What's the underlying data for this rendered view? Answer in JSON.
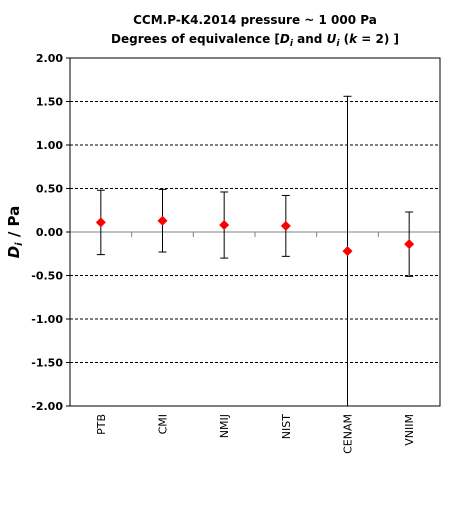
{
  "chart_data": {
    "type": "scatter",
    "title_line1": "CCM.P-K4.2014  pressure ~ 1 000 Pa",
    "title_line2": {
      "prefix": "Degrees of equivalence [",
      "d_symbol": "D",
      "d_subscript": "i",
      "and": " and ",
      "u_symbol": "U",
      "u_subscript": "i",
      "k_open": " (",
      "k_symbol": "k",
      "k_value": " = 2) ]"
    },
    "ylabel": {
      "symbol": "D",
      "subscript": "i",
      "unit": " / Pa"
    },
    "xlabel": "",
    "ylim": [
      -2.0,
      2.0
    ],
    "yticks": [
      "2.00",
      "1.50",
      "1.00",
      "0.50",
      "0.00",
      "-0.50",
      "-1.00",
      "-1.50",
      "-2.00"
    ],
    "categories": [
      "PTB",
      "CMI",
      "NMIJ",
      "NIST",
      "CENAM",
      "VNIIM"
    ],
    "values": [
      0.11,
      0.13,
      0.08,
      0.07,
      -0.22,
      -0.14
    ],
    "uncertainty": [
      0.37,
      0.36,
      0.38,
      0.35,
      1.78,
      0.37
    ],
    "grid": "horizontal dashed",
    "legend": "none",
    "marker_color": "#ff0000",
    "errorbar_color": "#000000",
    "zero_line_color": "#808080"
  }
}
